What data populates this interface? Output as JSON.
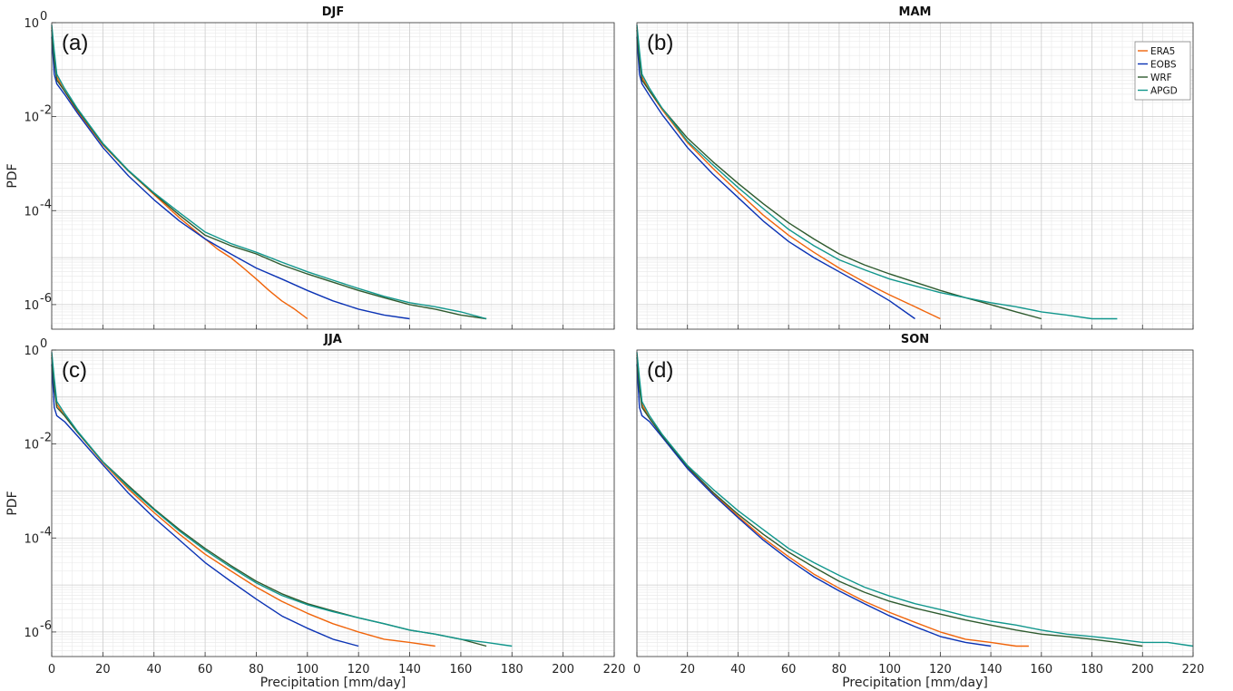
{
  "colors": {
    "ERA5": "#f0640a",
    "EOBS": "#0a32b4",
    "WRF": "#2e5a2e",
    "APGD": "#10968c",
    "grid_major": "#cccccc",
    "grid_minor": "#e8e8e8"
  },
  "chart_data": [
    {
      "type": "line",
      "title": "DJF",
      "panel_letter": "(a)",
      "xlabel": "",
      "ylabel": "PDF",
      "xlim": [
        0,
        220
      ],
      "ylim": [
        3e-07,
        1
      ],
      "yscale": "log",
      "xticks": [
        "0",
        "20",
        "40",
        "60",
        "80",
        "100",
        "120",
        "140",
        "160",
        "180",
        "200",
        "220"
      ],
      "yticks": [
        {
          "base": "10",
          "exp": "0"
        },
        {
          "base": "10",
          "exp": "-2"
        },
        {
          "base": "10",
          "exp": "-4"
        },
        {
          "base": "10",
          "exp": "-6"
        }
      ],
      "grid": true,
      "legend": null,
      "series": [
        {
          "name": "ERA5",
          "x": [
            0,
            1,
            2,
            5,
            10,
            20,
            30,
            40,
            50,
            60,
            65,
            70,
            75,
            80,
            85,
            90,
            95,
            100
          ],
          "y": [
            0.8,
            0.2,
            0.07,
            0.035,
            0.013,
            0.0025,
            0.0007,
            0.00022,
            7e-05,
            2.5e-05,
            1.5e-05,
            1e-05,
            6e-06,
            3.5e-06,
            2e-06,
            1.2e-06,
            8e-07,
            5e-07
          ]
        },
        {
          "name": "EOBS",
          "x": [
            0,
            1,
            2,
            5,
            10,
            20,
            30,
            40,
            50,
            60,
            70,
            80,
            90,
            100,
            110,
            120,
            130,
            140
          ],
          "y": [
            0.5,
            0.08,
            0.05,
            0.03,
            0.012,
            0.0022,
            0.00055,
            0.00017,
            6e-05,
            2.5e-05,
            1.2e-05,
            6e-06,
            3.5e-06,
            2e-06,
            1.2e-06,
            8e-07,
            6e-07,
            5e-07
          ]
        },
        {
          "name": "WRF",
          "x": [
            0,
            1,
            2,
            5,
            10,
            20,
            30,
            40,
            50,
            60,
            70,
            80,
            90,
            100,
            110,
            120,
            130,
            140,
            150,
            160,
            170
          ],
          "y": [
            0.7,
            0.15,
            0.06,
            0.035,
            0.014,
            0.0026,
            0.0007,
            0.00023,
            8e-05,
            3e-05,
            1.8e-05,
            1.2e-05,
            7e-06,
            4.5e-06,
            3e-06,
            2e-06,
            1.4e-06,
            1e-06,
            8e-07,
            6e-07,
            5e-07
          ]
        },
        {
          "name": "APGD",
          "x": [
            0,
            1,
            2,
            5,
            10,
            20,
            30,
            40,
            50,
            60,
            70,
            80,
            90,
            100,
            110,
            120,
            130,
            140,
            150,
            160,
            170
          ],
          "y": [
            0.9,
            0.25,
            0.08,
            0.04,
            0.015,
            0.0027,
            0.00072,
            0.00024,
            9e-05,
            3.5e-05,
            2e-05,
            1.3e-05,
            8e-06,
            5e-06,
            3.3e-06,
            2.2e-06,
            1.5e-06,
            1.1e-06,
            9e-07,
            7e-07,
            5e-07
          ]
        }
      ]
    },
    {
      "type": "line",
      "title": "MAM",
      "panel_letter": "(b)",
      "xlabel": "",
      "ylabel": "",
      "xlim": [
        0,
        220
      ],
      "ylim": [
        3e-07,
        1
      ],
      "yscale": "log",
      "xticks": [
        "0",
        "20",
        "40",
        "60",
        "80",
        "100",
        "120",
        "140",
        "160",
        "180",
        "200",
        "220"
      ],
      "yticks": [],
      "grid": true,
      "legend": "top-right",
      "series": [
        {
          "name": "ERA5",
          "x": [
            0,
            1,
            2,
            5,
            10,
            20,
            30,
            40,
            50,
            60,
            70,
            80,
            90,
            100,
            110,
            120
          ],
          "y": [
            0.8,
            0.2,
            0.07,
            0.035,
            0.014,
            0.0028,
            0.0008,
            0.00025,
            8e-05,
            3e-05,
            1.3e-05,
            6e-06,
            3e-06,
            1.6e-06,
            9e-07,
            5e-07
          ]
        },
        {
          "name": "EOBS",
          "x": [
            0,
            1,
            2,
            5,
            10,
            20,
            30,
            40,
            50,
            60,
            70,
            80,
            90,
            100,
            110
          ],
          "y": [
            0.5,
            0.08,
            0.05,
            0.028,
            0.011,
            0.0022,
            0.0006,
            0.00019,
            6e-05,
            2.2e-05,
            1e-05,
            5e-06,
            2.5e-06,
            1.2e-06,
            5e-07
          ]
        },
        {
          "name": "WRF",
          "x": [
            0,
            1,
            2,
            5,
            10,
            20,
            30,
            40,
            50,
            60,
            70,
            80,
            90,
            100,
            110,
            120,
            130,
            140,
            150,
            160
          ],
          "y": [
            0.7,
            0.15,
            0.06,
            0.035,
            0.015,
            0.0035,
            0.0011,
            0.00038,
            0.00014,
            5.5e-05,
            2.5e-05,
            1.2e-05,
            7e-06,
            4.5e-06,
            3e-06,
            2e-06,
            1.4e-06,
            1e-06,
            7e-07,
            5e-07
          ]
        },
        {
          "name": "APGD",
          "x": [
            0,
            1,
            2,
            5,
            10,
            20,
            30,
            40,
            50,
            60,
            70,
            80,
            90,
            100,
            110,
            120,
            130,
            140,
            150,
            160,
            170,
            180,
            190
          ],
          "y": [
            0.9,
            0.25,
            0.08,
            0.04,
            0.015,
            0.003,
            0.00095,
            0.00031,
            0.00011,
            4e-05,
            1.8e-05,
            9e-06,
            5.5e-06,
            3.5e-06,
            2.5e-06,
            1.8e-06,
            1.4e-06,
            1.1e-06,
            9e-07,
            7e-07,
            6e-07,
            5e-07,
            5e-07
          ]
        }
      ]
    },
    {
      "type": "line",
      "title": "JJA",
      "panel_letter": "(c)",
      "xlabel": "Precipitation [mm/day]",
      "ylabel": "PDF",
      "xlim": [
        0,
        220
      ],
      "ylim": [
        3e-07,
        1
      ],
      "yscale": "log",
      "xticks": [
        "0",
        "20",
        "40",
        "60",
        "80",
        "100",
        "120",
        "140",
        "160",
        "180",
        "200",
        "220"
      ],
      "yticks": [
        {
          "base": "10",
          "exp": "0"
        },
        {
          "base": "10",
          "exp": "-2"
        },
        {
          "base": "10",
          "exp": "-4"
        },
        {
          "base": "10",
          "exp": "-6"
        }
      ],
      "grid": true,
      "legend": null,
      "series": [
        {
          "name": "ERA5",
          "x": [
            0,
            1,
            2,
            5,
            10,
            20,
            30,
            40,
            50,
            60,
            70,
            80,
            90,
            100,
            110,
            120,
            130,
            140,
            150
          ],
          "y": [
            0.8,
            0.2,
            0.07,
            0.04,
            0.018,
            0.004,
            0.0011,
            0.00035,
            0.00012,
            4.5e-05,
            2e-05,
            9e-06,
            4.5e-06,
            2.5e-06,
            1.5e-06,
            1e-06,
            7e-07,
            6e-07,
            5e-07
          ]
        },
        {
          "name": "EOBS",
          "x": [
            0,
            1,
            2,
            5,
            10,
            20,
            30,
            40,
            50,
            60,
            70,
            80,
            90,
            100,
            110,
            120
          ],
          "y": [
            0.5,
            0.06,
            0.04,
            0.03,
            0.015,
            0.0036,
            0.0009,
            0.00027,
            9e-05,
            3e-05,
            1.2e-05,
            5e-06,
            2.2e-06,
            1.2e-06,
            7e-07,
            5e-07
          ]
        },
        {
          "name": "WRF",
          "x": [
            0,
            1,
            2,
            5,
            10,
            20,
            30,
            40,
            50,
            60,
            70,
            80,
            90,
            100,
            110,
            120,
            130,
            140,
            150,
            160,
            170
          ],
          "y": [
            0.7,
            0.15,
            0.06,
            0.04,
            0.018,
            0.0042,
            0.0013,
            0.00042,
            0.00015,
            6e-05,
            2.6e-05,
            1.2e-05,
            6.5e-06,
            4e-06,
            2.8e-06,
            2e-06,
            1.5e-06,
            1.1e-06,
            9e-07,
            7e-07,
            5e-07
          ]
        },
        {
          "name": "APGD",
          "x": [
            0,
            1,
            2,
            5,
            10,
            20,
            30,
            40,
            50,
            60,
            70,
            80,
            90,
            100,
            110,
            120,
            130,
            140,
            150,
            160,
            170,
            180
          ],
          "y": [
            0.9,
            0.25,
            0.08,
            0.045,
            0.019,
            0.0042,
            0.0012,
            0.0004,
            0.00014,
            5.5e-05,
            2.4e-05,
            1.1e-05,
            6e-06,
            3.8e-06,
            2.7e-06,
            2e-06,
            1.5e-06,
            1.1e-06,
            9e-07,
            7e-07,
            6e-07,
            5e-07
          ]
        }
      ]
    },
    {
      "type": "line",
      "title": "SON",
      "panel_letter": "(d)",
      "xlabel": "Precipitation [mm/day]",
      "ylabel": "",
      "xlim": [
        0,
        220
      ],
      "ylim": [
        3e-07,
        1
      ],
      "yscale": "log",
      "xticks": [
        "0",
        "20",
        "40",
        "60",
        "80",
        "100",
        "120",
        "140",
        "160",
        "180",
        "200",
        "220"
      ],
      "yticks": [],
      "grid": true,
      "legend": null,
      "series": [
        {
          "name": "ERA5",
          "x": [
            0,
            1,
            2,
            5,
            10,
            20,
            30,
            40,
            50,
            60,
            70,
            80,
            90,
            100,
            110,
            120,
            130,
            140,
            150,
            155
          ],
          "y": [
            0.8,
            0.2,
            0.07,
            0.035,
            0.015,
            0.0032,
            0.0009,
            0.00029,
            0.0001,
            4e-05,
            1.7e-05,
            8.5e-06,
            4.5e-06,
            2.6e-06,
            1.6e-06,
            1e-06,
            7e-07,
            6e-07,
            5e-07,
            5e-07
          ]
        },
        {
          "name": "EOBS",
          "x": [
            0,
            1,
            2,
            5,
            10,
            20,
            30,
            40,
            50,
            60,
            70,
            80,
            90,
            100,
            110,
            120,
            130,
            140
          ],
          "y": [
            0.5,
            0.06,
            0.04,
            0.03,
            0.014,
            0.003,
            0.00085,
            0.00027,
            9e-05,
            3.5e-05,
            1.5e-05,
            7.5e-06,
            4e-06,
            2.2e-06,
            1.3e-06,
            8e-07,
            6e-07,
            5e-07
          ]
        },
        {
          "name": "WRF",
          "x": [
            0,
            1,
            2,
            5,
            10,
            20,
            30,
            40,
            50,
            60,
            70,
            80,
            90,
            100,
            110,
            120,
            130,
            140,
            150,
            160,
            170,
            180,
            190,
            200
          ],
          "y": [
            0.7,
            0.15,
            0.06,
            0.035,
            0.015,
            0.0033,
            0.00095,
            0.00032,
            0.00012,
            5e-05,
            2.4e-05,
            1.2e-05,
            7e-06,
            4.5e-06,
            3.2e-06,
            2.4e-06,
            1.8e-06,
            1.4e-06,
            1.1e-06,
            9e-07,
            8e-07,
            7e-07,
            6e-07,
            5e-07
          ]
        },
        {
          "name": "APGD",
          "x": [
            0,
            1,
            2,
            5,
            10,
            20,
            30,
            40,
            50,
            60,
            70,
            80,
            90,
            100,
            110,
            120,
            130,
            140,
            150,
            160,
            170,
            180,
            190,
            200,
            210,
            220
          ],
          "y": [
            0.9,
            0.25,
            0.08,
            0.04,
            0.016,
            0.0035,
            0.0011,
            0.00038,
            0.00015,
            6e-05,
            3e-05,
            1.6e-05,
            9e-06,
            5.8e-06,
            4e-06,
            3e-06,
            2.2e-06,
            1.7e-06,
            1.4e-06,
            1.1e-06,
            9e-07,
            8e-07,
            7e-07,
            6e-07,
            6e-07,
            5e-07
          ]
        }
      ]
    }
  ]
}
